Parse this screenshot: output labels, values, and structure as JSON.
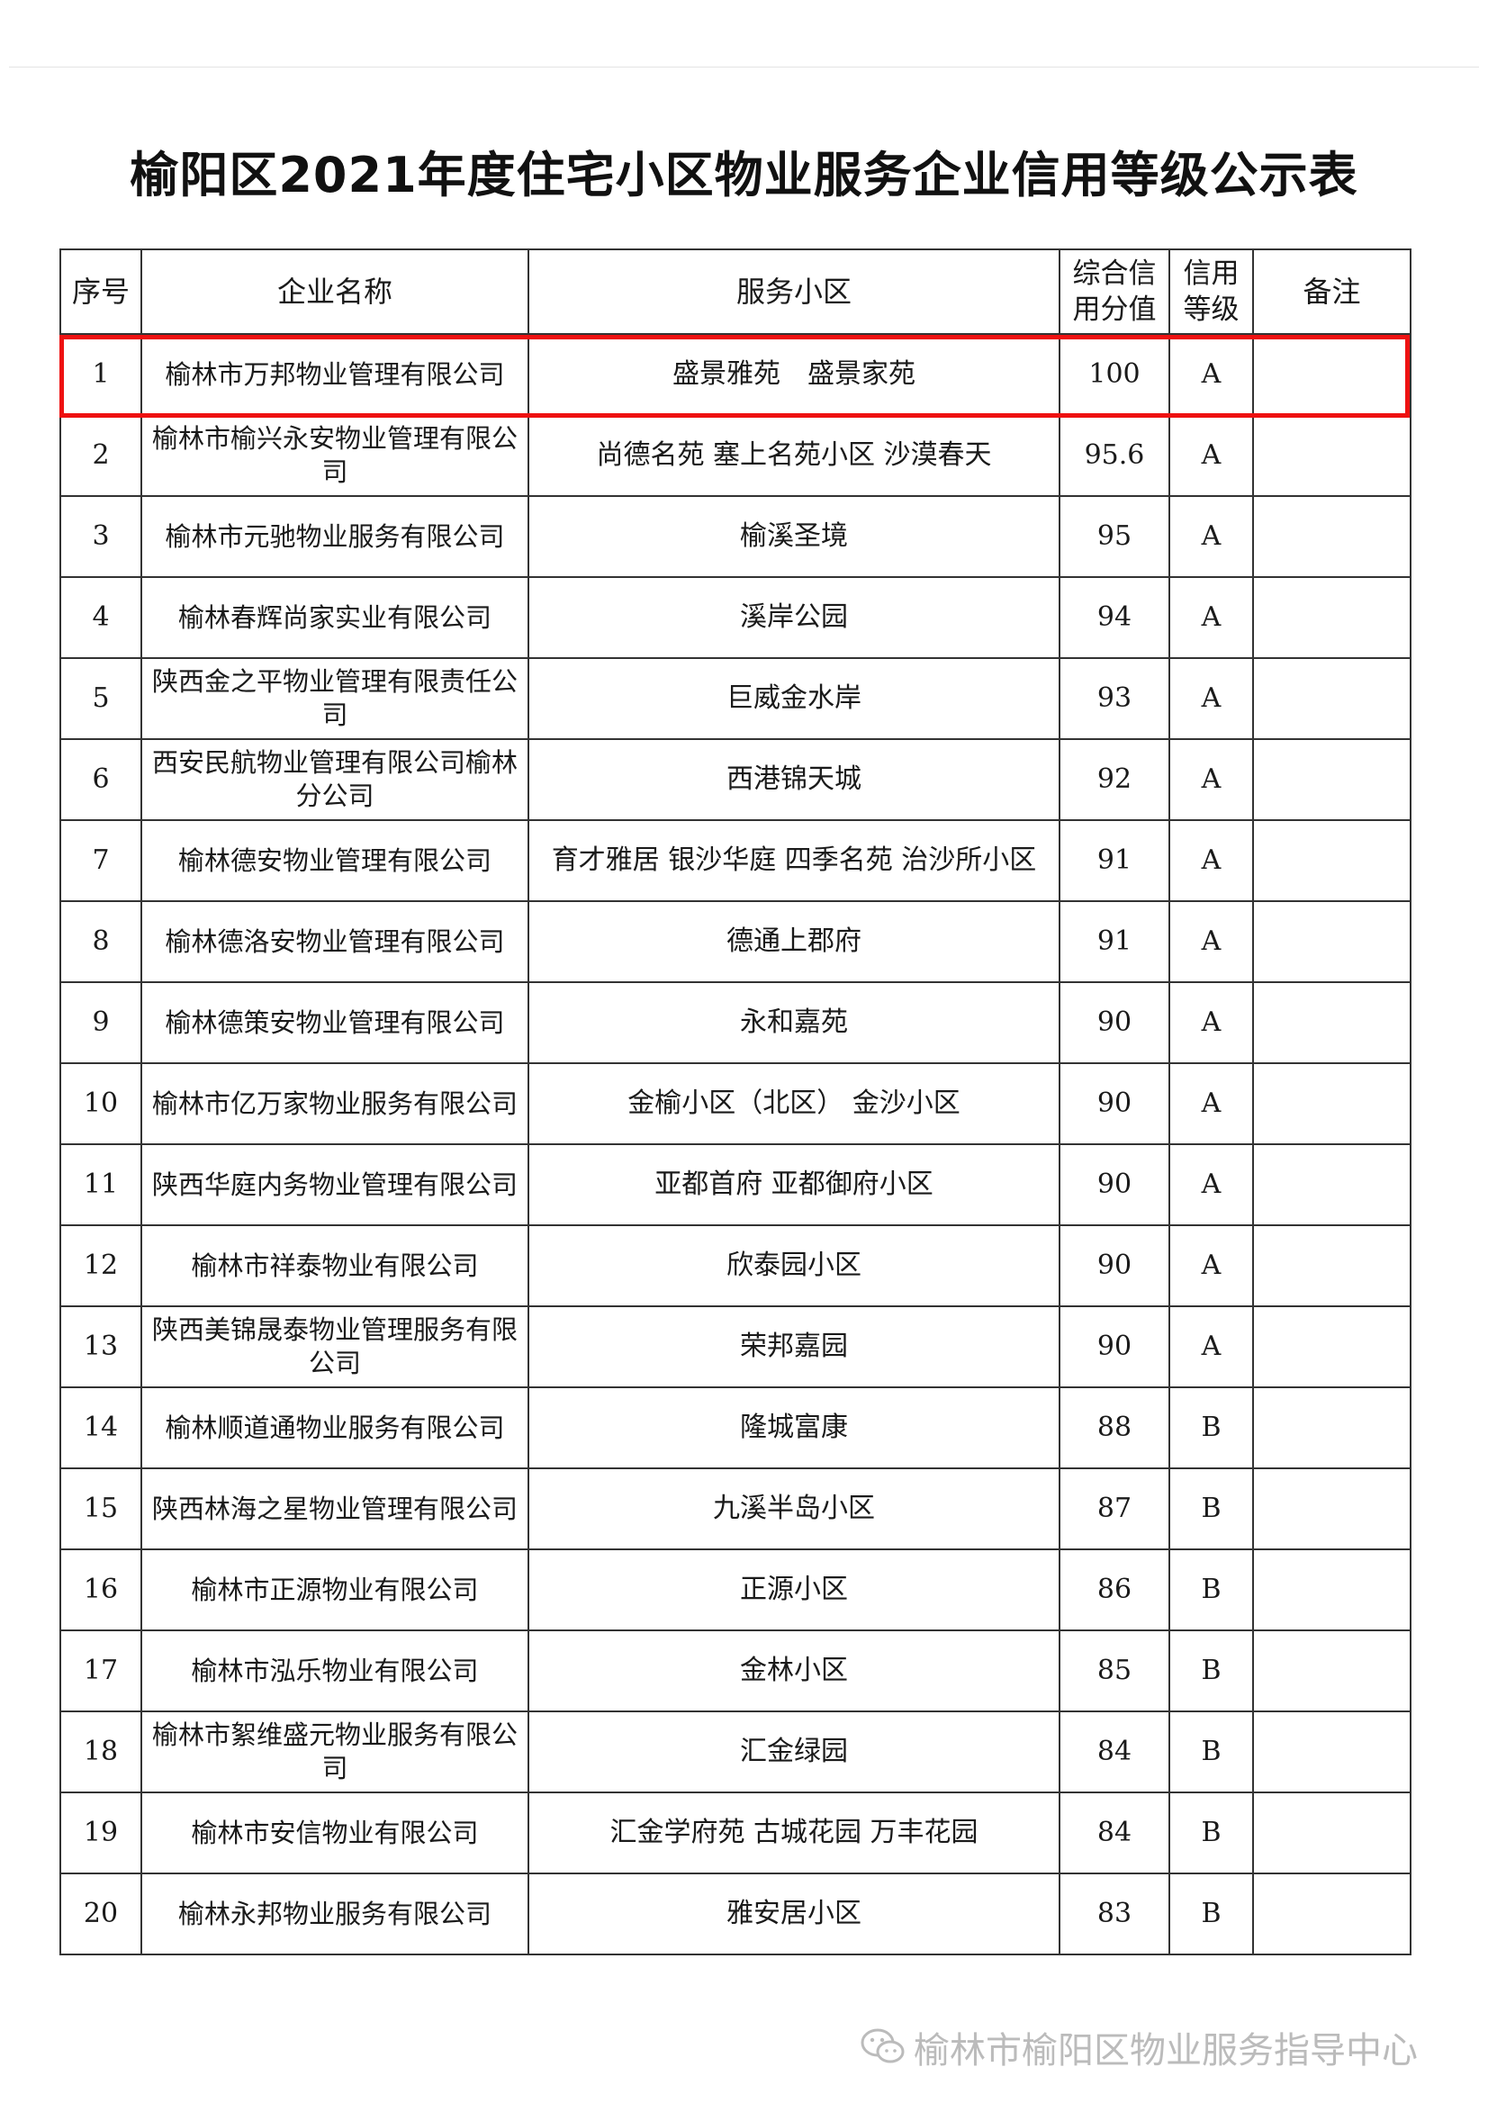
{
  "title": "榆阳区2021年度住宅小区物业服务企业信用等级公示表",
  "highlight_color": "#ee1111",
  "table": {
    "headers": [
      "序号",
      "企业名称",
      "服务小区",
      "综合信用分值",
      "信用等级",
      "备注"
    ],
    "rows": [
      {
        "no": "1",
        "company": "榆林市万邦物业管理有限公司",
        "communities": "盛景雅苑　盛景家苑",
        "score": "100",
        "grade": "A",
        "note": "",
        "highlighted": true
      },
      {
        "no": "2",
        "company": "榆林市榆兴永安物业管理有限公司",
        "communities": "尚德名苑 塞上名苑小区 沙漠春天",
        "score": "95.6",
        "grade": "A",
        "note": ""
      },
      {
        "no": "3",
        "company": "榆林市元驰物业服务有限公司",
        "communities": "榆溪圣境",
        "score": "95",
        "grade": "A",
        "note": ""
      },
      {
        "no": "4",
        "company": "榆林春辉尚家实业有限公司",
        "communities": "溪岸公园",
        "score": "94",
        "grade": "A",
        "note": ""
      },
      {
        "no": "5",
        "company": "陕西金之平物业管理有限责任公司",
        "communities": "巨威金水岸",
        "score": "93",
        "grade": "A",
        "note": ""
      },
      {
        "no": "6",
        "company": "西安民航物业管理有限公司榆林分公司",
        "communities": "西港锦天城",
        "score": "92",
        "grade": "A",
        "note": ""
      },
      {
        "no": "7",
        "company": "榆林德安物业管理有限公司",
        "communities": "育才雅居 银沙华庭 四季名苑 治沙所小区",
        "score": "91",
        "grade": "A",
        "note": ""
      },
      {
        "no": "8",
        "company": "榆林德洛安物业管理有限公司",
        "communities": "德通上郡府",
        "score": "91",
        "grade": "A",
        "note": ""
      },
      {
        "no": "9",
        "company": "榆林德策安物业管理有限公司",
        "communities": "永和嘉苑",
        "score": "90",
        "grade": "A",
        "note": ""
      },
      {
        "no": "10",
        "company": "榆林市亿万家物业服务有限公司",
        "communities": "金榆小区（北区） 金沙小区",
        "score": "90",
        "grade": "A",
        "note": ""
      },
      {
        "no": "11",
        "company": "陕西华庭内务物业管理有限公司",
        "communities": "亚都首府 亚都御府小区",
        "score": "90",
        "grade": "A",
        "note": ""
      },
      {
        "no": "12",
        "company": "榆林市祥泰物业有限公司",
        "communities": "欣泰园小区",
        "score": "90",
        "grade": "A",
        "note": ""
      },
      {
        "no": "13",
        "company": "陕西美锦晟泰物业管理服务有限公司",
        "communities": "荣邦嘉园",
        "score": "90",
        "grade": "A",
        "note": ""
      },
      {
        "no": "14",
        "company": "榆林顺道通物业服务有限公司",
        "communities": "隆城富康",
        "score": "88",
        "grade": "B",
        "note": ""
      },
      {
        "no": "15",
        "company": "陕西林海之星物业管理有限公司",
        "communities": "九溪半岛小区",
        "score": "87",
        "grade": "B",
        "note": ""
      },
      {
        "no": "16",
        "company": "榆林市正源物业有限公司",
        "communities": "正源小区",
        "score": "86",
        "grade": "B",
        "note": ""
      },
      {
        "no": "17",
        "company": "榆林市泓乐物业有限公司",
        "communities": "金林小区",
        "score": "85",
        "grade": "B",
        "note": ""
      },
      {
        "no": "18",
        "company": "榆林市絮维盛元物业服务有限公司",
        "communities": "汇金绿园",
        "score": "84",
        "grade": "B",
        "note": ""
      },
      {
        "no": "19",
        "company": "榆林市安信物业有限公司",
        "communities": "汇金学府苑 古城花园 万丰花园",
        "score": "84",
        "grade": "B",
        "note": ""
      },
      {
        "no": "20",
        "company": "榆林永邦物业服务有限公司",
        "communities": "雅安居小区",
        "score": "83",
        "grade": "B",
        "note": ""
      }
    ]
  },
  "watermark": {
    "icon": "wechat-icon",
    "text": "榆林市榆阳区物业服务指导中心"
  }
}
